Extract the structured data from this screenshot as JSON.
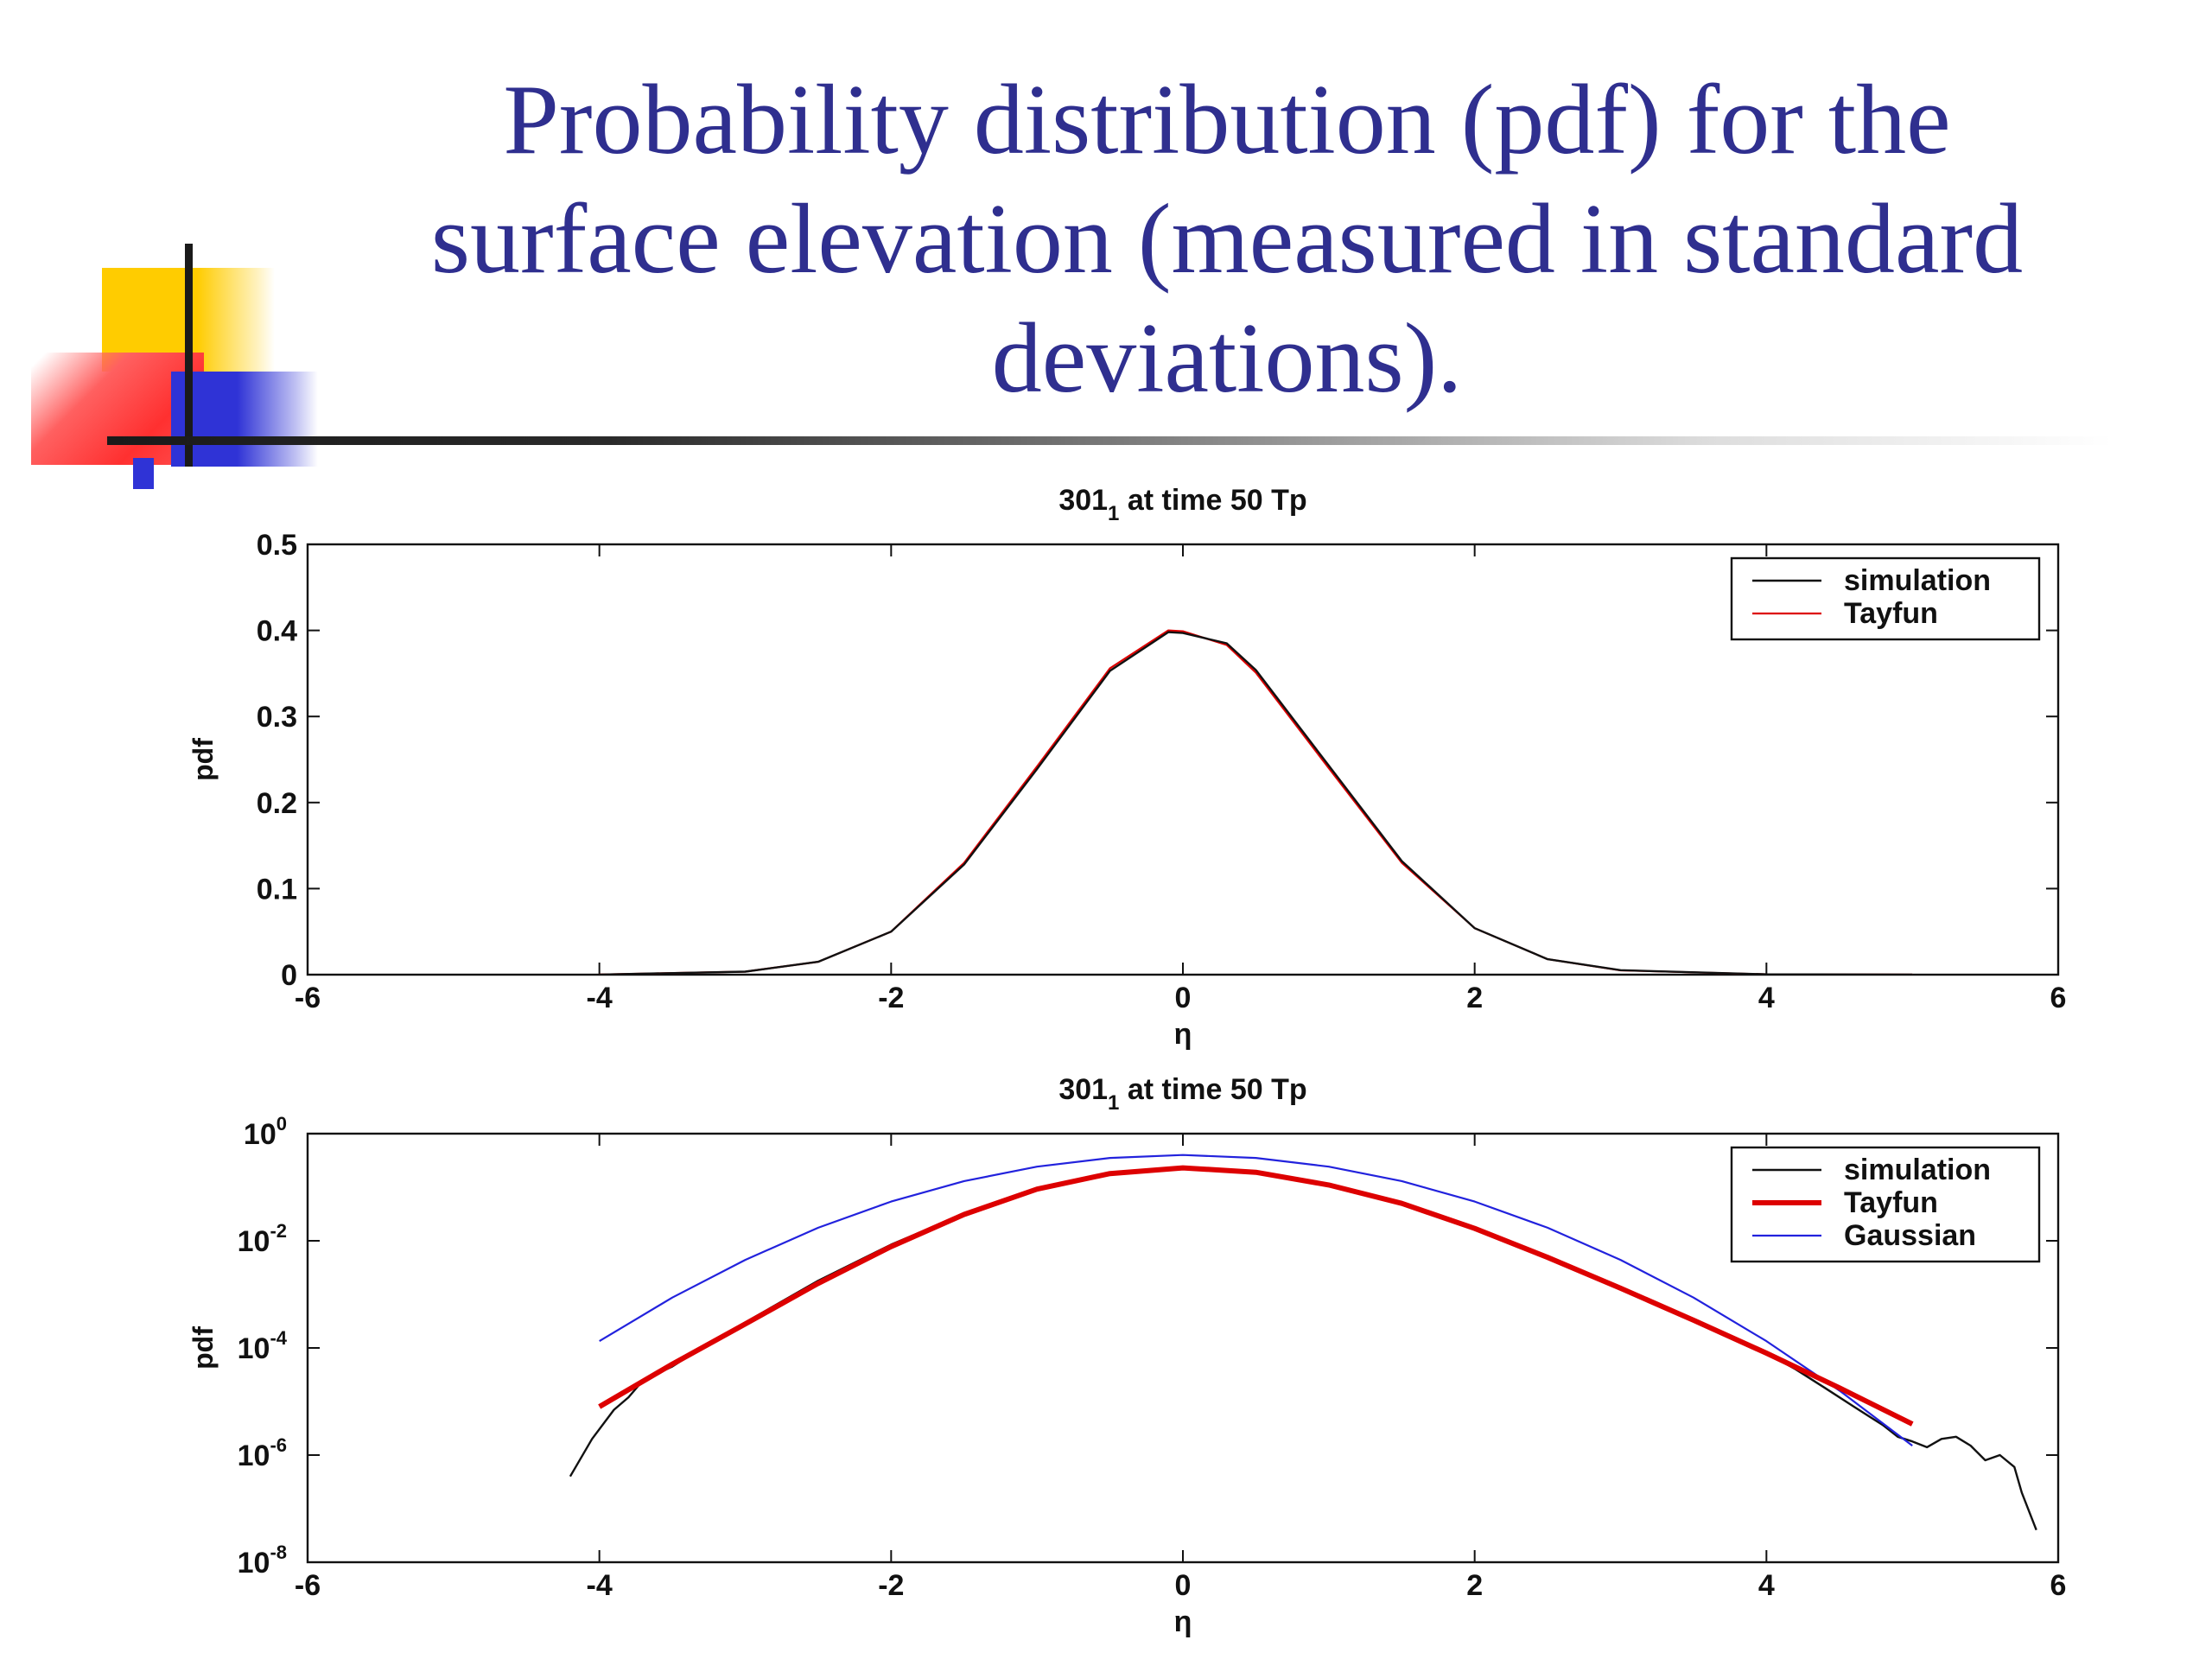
{
  "slide": {
    "title_lines": [
      "Probability distribution (pdf) for the",
      "surface elevation (measured in standard",
      "deviations)."
    ]
  },
  "colors": {
    "title": "#2f2f8f",
    "simulation": "#111111",
    "tayfun": "#dd0000",
    "gaussian": "#2222dd"
  },
  "chart_data": [
    {
      "type": "line",
      "title": "301",
      "title_subscript": "1",
      "title_rest": "at time 50 Tp",
      "xlabel": "η",
      "ylabel": "pdf",
      "xlim": [
        -6,
        6
      ],
      "ylim": [
        0,
        0.5
      ],
      "yscale": "linear",
      "grid": false,
      "legend_position": "top-right",
      "xticks": [
        "-6",
        "-4",
        "-2",
        "0",
        "2",
        "4",
        "6"
      ],
      "yticks": [
        "0",
        "0.1",
        "0.2",
        "0.3",
        "0.4",
        "0.5"
      ],
      "series": [
        {
          "name": "simulation",
          "x": [
            -4.0,
            -3.0,
            -2.5,
            -2.0,
            -1.5,
            -1.0,
            -0.5,
            -0.1,
            0.0,
            0.3,
            0.5,
            1.0,
            1.5,
            2.0,
            2.5,
            3.0,
            4.0,
            5.0
          ],
          "y": [
            0.0001,
            0.0035,
            0.015,
            0.05,
            0.128,
            0.239,
            0.353,
            0.398,
            0.397,
            0.385,
            0.354,
            0.243,
            0.132,
            0.054,
            0.018,
            0.0052,
            0.0004,
            2e-05
          ]
        },
        {
          "name": "Tayfun",
          "x": [
            -4.0,
            -3.0,
            -2.5,
            -2.0,
            -1.5,
            -1.0,
            -0.5,
            -0.1,
            0.0,
            0.3,
            0.5,
            1.0,
            1.5,
            2.0,
            2.5,
            3.0,
            4.0,
            5.0
          ],
          "y": [
            0.0001,
            0.0035,
            0.015,
            0.05,
            0.13,
            0.242,
            0.356,
            0.4,
            0.399,
            0.383,
            0.351,
            0.24,
            0.13,
            0.054,
            0.018,
            0.005,
            0.0004,
            2e-05
          ]
        }
      ]
    },
    {
      "type": "line",
      "title": "301",
      "title_subscript": "1",
      "title_rest": "at time 50 Tp",
      "xlabel": "η",
      "ylabel": "pdf",
      "xlim": [
        -6,
        6
      ],
      "ylim": [
        1e-08,
        1
      ],
      "yscale": "log",
      "grid": false,
      "legend_position": "top-right",
      "xticks": [
        "-6",
        "-4",
        "-2",
        "0",
        "2",
        "4",
        "6"
      ],
      "yticks": [
        {
          "base": "10",
          "exp": "0"
        },
        {
          "base": "10",
          "exp": "-2"
        },
        {
          "base": "10",
          "exp": "-4"
        },
        {
          "base": "10",
          "exp": "-6"
        },
        {
          "base": "10",
          "exp": "-8"
        }
      ],
      "series": [
        {
          "name": "simulation",
          "x": [
            -4.2,
            -4.05,
            -3.9,
            -3.8,
            -3.7,
            -3.5,
            -3.3,
            -3.0,
            -2.5,
            -2.0,
            -1.5,
            -1.0,
            -0.5,
            0.0,
            0.5,
            1.0,
            1.5,
            2.0,
            2.5,
            3.0,
            3.5,
            4.0,
            4.2,
            4.4,
            4.6,
            4.8,
            4.9,
            5.0,
            5.1,
            5.2,
            5.3,
            5.4,
            5.5,
            5.6,
            5.7,
            5.75,
            5.85
          ],
          "y": [
            4e-07,
            2e-06,
            7e-06,
            1.2e-05,
            2.5e-05,
            4.5e-05,
            0.0001,
            0.0003,
            0.0018,
            0.0085,
            0.032,
            0.092,
            0.18,
            0.23,
            0.19,
            0.11,
            0.05,
            0.017,
            0.0049,
            0.0013,
            0.00033,
            8e-05,
            4e-05,
            1.8e-05,
            8e-06,
            3.6e-06,
            2.2e-06,
            1.8e-06,
            1.4e-06,
            2e-06,
            2.2e-06,
            1.5e-06,
            8e-07,
            1e-06,
            6e-07,
            2e-07,
            4e-08
          ]
        },
        {
          "name": "Tayfun",
          "x": [
            -4.0,
            -3.5,
            -3.0,
            -2.5,
            -2.0,
            -1.5,
            -1.0,
            -0.5,
            0.0,
            0.5,
            1.0,
            1.5,
            2.0,
            2.5,
            3.0,
            3.5,
            4.0,
            4.5,
            5.0
          ],
          "y": [
            8e-06,
            5e-05,
            0.00028,
            0.0016,
            0.0078,
            0.031,
            0.092,
            0.18,
            0.23,
            0.19,
            0.11,
            0.05,
            0.017,
            0.0049,
            0.0013,
            0.00033,
            8e-05,
            1.8e-05,
            3.8e-06
          ]
        },
        {
          "name": "Gaussian",
          "x": [
            -4.0,
            -3.5,
            -3.0,
            -2.5,
            -2.0,
            -1.5,
            -1.0,
            -0.5,
            0.0,
            0.5,
            1.0,
            1.5,
            2.0,
            2.5,
            3.0,
            3.5,
            4.0,
            4.5,
            5.0
          ],
          "y": [
            0.000134,
            0.00087,
            0.0044,
            0.0175,
            0.054,
            0.13,
            0.242,
            0.352,
            0.399,
            0.352,
            0.242,
            0.13,
            0.054,
            0.0175,
            0.0044,
            0.00087,
            0.000134,
            1.6e-05,
            1.5e-06
          ]
        }
      ]
    }
  ]
}
